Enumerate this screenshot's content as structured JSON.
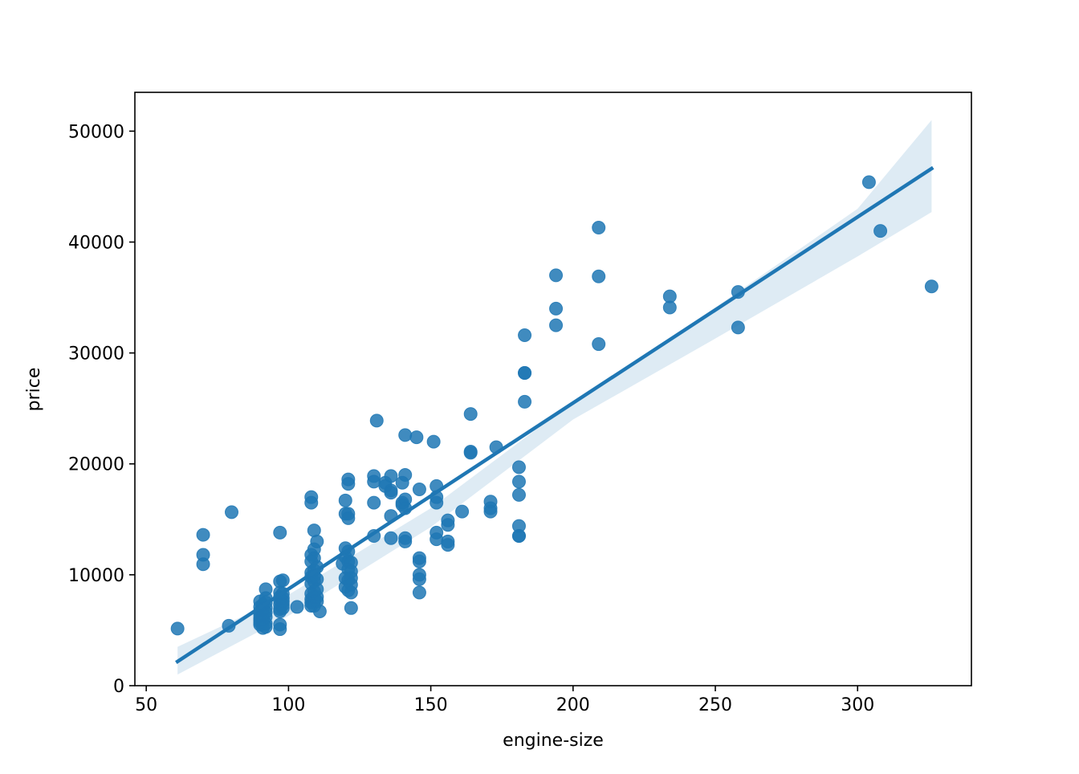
{
  "chart_data": {
    "type": "scatter",
    "title": "",
    "xlabel": "engine-size",
    "ylabel": "price",
    "xlim": [
      46,
      340
    ],
    "ylim": [
      0,
      53500
    ],
    "xticks": [
      50,
      100,
      150,
      200,
      250,
      300
    ],
    "yticks": [
      0,
      10000,
      20000,
      30000,
      40000,
      50000
    ],
    "grid": false,
    "legend": "none",
    "colors": {
      "points": "#1f77b4",
      "line": "#1f77b4",
      "band": "#1f77b4"
    },
    "regression": {
      "x_range": [
        61,
        326
      ],
      "slope": 167.7,
      "intercept": -8048,
      "ci_upper": [
        [
          61,
          3500
        ],
        [
          100,
          8200
        ],
        [
          150,
          16000
        ],
        [
          200,
          25600
        ],
        [
          250,
          34100
        ],
        [
          300,
          43000
        ],
        [
          326,
          51000
        ]
      ],
      "ci_lower": [
        [
          61,
          1000
        ],
        [
          100,
          6300
        ],
        [
          150,
          14300
        ],
        [
          200,
          24000
        ],
        [
          250,
          31300
        ],
        [
          300,
          38700
        ],
        [
          326,
          42700
        ]
      ]
    },
    "points": [
      [
        61,
        5150
      ],
      [
        70,
        13600
      ],
      [
        70,
        11800
      ],
      [
        70,
        10950
      ],
      [
        79,
        5400
      ],
      [
        80,
        15650
      ],
      [
        90,
        7600
      ],
      [
        90,
        7100
      ],
      [
        90,
        6700
      ],
      [
        90,
        6400
      ],
      [
        90,
        6100
      ],
      [
        90,
        5900
      ],
      [
        90,
        5700
      ],
      [
        90,
        5500
      ],
      [
        91,
        7300
      ],
      [
        91,
        6900
      ],
      [
        91,
        6500
      ],
      [
        91,
        6300
      ],
      [
        91,
        6000
      ],
      [
        91,
        5800
      ],
      [
        91,
        5200
      ],
      [
        92,
        8700
      ],
      [
        92,
        7900
      ],
      [
        92,
        7500
      ],
      [
        92,
        7000
      ],
      [
        92,
        6600
      ],
      [
        92,
        6200
      ],
      [
        92,
        5600
      ],
      [
        92,
        5300
      ],
      [
        97,
        13800
      ],
      [
        97,
        9400
      ],
      [
        97,
        8400
      ],
      [
        97,
        8000
      ],
      [
        97,
        7700
      ],
      [
        97,
        7300
      ],
      [
        97,
        6900
      ],
      [
        97,
        6700
      ],
      [
        97,
        5500
      ],
      [
        97,
        5100
      ],
      [
        98,
        9500
      ],
      [
        98,
        8300
      ],
      [
        98,
        7900
      ],
      [
        98,
        7600
      ],
      [
        98,
        7300
      ],
      [
        98,
        7000
      ],
      [
        103,
        7100
      ],
      [
        108,
        17000
      ],
      [
        108,
        16500
      ],
      [
        108,
        11800
      ],
      [
        108,
        11200
      ],
      [
        108,
        10200
      ],
      [
        108,
        9800
      ],
      [
        108,
        9200
      ],
      [
        108,
        8300
      ],
      [
        108,
        7800
      ],
      [
        108,
        7500
      ],
      [
        108,
        7200
      ],
      [
        109,
        14000
      ],
      [
        109,
        12300
      ],
      [
        109,
        11500
      ],
      [
        109,
        10400
      ],
      [
        109,
        9900
      ],
      [
        109,
        9400
      ],
      [
        109,
        8500
      ],
      [
        109,
        8000
      ],
      [
        109,
        7600
      ],
      [
        109,
        7200
      ],
      [
        110,
        13000
      ],
      [
        110,
        10700
      ],
      [
        110,
        9600
      ],
      [
        110,
        8700
      ],
      [
        110,
        8000
      ],
      [
        110,
        7600
      ],
      [
        111,
        6700
      ],
      [
        119,
        11000
      ],
      [
        120,
        16700
      ],
      [
        120,
        15500
      ],
      [
        120,
        12400
      ],
      [
        120,
        11600
      ],
      [
        120,
        9700
      ],
      [
        120,
        8900
      ],
      [
        121,
        18600
      ],
      [
        121,
        18200
      ],
      [
        121,
        15500
      ],
      [
        121,
        15100
      ],
      [
        121,
        12100
      ],
      [
        121,
        11200
      ],
      [
        121,
        10500
      ],
      [
        121,
        9500
      ],
      [
        121,
        8600
      ],
      [
        122,
        11100
      ],
      [
        122,
        10300
      ],
      [
        122,
        9700
      ],
      [
        122,
        9100
      ],
      [
        122,
        8400
      ],
      [
        122,
        7000
      ],
      [
        130,
        18900
      ],
      [
        130,
        18400
      ],
      [
        130,
        16500
      ],
      [
        130,
        13500
      ],
      [
        131,
        23900
      ],
      [
        134,
        18300
      ],
      [
        134,
        18000
      ],
      [
        136,
        18900
      ],
      [
        136,
        17600
      ],
      [
        136,
        17400
      ],
      [
        136,
        15300
      ],
      [
        136,
        13300
      ],
      [
        140,
        18300
      ],
      [
        140,
        16500
      ],
      [
        140,
        16300
      ],
      [
        141,
        22600
      ],
      [
        141,
        19000
      ],
      [
        141,
        16800
      ],
      [
        141,
        16000
      ],
      [
        141,
        13300
      ],
      [
        141,
        13000
      ],
      [
        145,
        22400
      ],
      [
        146,
        17700
      ],
      [
        146,
        11500
      ],
      [
        146,
        11200
      ],
      [
        146,
        10000
      ],
      [
        146,
        9600
      ],
      [
        146,
        8400
      ],
      [
        151,
        22000
      ],
      [
        152,
        18000
      ],
      [
        152,
        17000
      ],
      [
        152,
        16500
      ],
      [
        152,
        13800
      ],
      [
        152,
        13200
      ],
      [
        156,
        14900
      ],
      [
        156,
        14500
      ],
      [
        156,
        13000
      ],
      [
        156,
        12700
      ],
      [
        161,
        15700
      ],
      [
        164,
        24500
      ],
      [
        164,
        21100
      ],
      [
        164,
        21000
      ],
      [
        171,
        16600
      ],
      [
        171,
        16000
      ],
      [
        171,
        15700
      ],
      [
        173,
        21500
      ],
      [
        181,
        19700
      ],
      [
        181,
        18400
      ],
      [
        181,
        17200
      ],
      [
        181,
        14400
      ],
      [
        181,
        13500
      ],
      [
        181,
        13500
      ],
      [
        183,
        31600
      ],
      [
        183,
        28200
      ],
      [
        183,
        28200
      ],
      [
        183,
        25600
      ],
      [
        194,
        37000
      ],
      [
        194,
        34000
      ],
      [
        194,
        32500
      ],
      [
        209,
        41300
      ],
      [
        209,
        36900
      ],
      [
        209,
        30800
      ],
      [
        234,
        35100
      ],
      [
        234,
        34100
      ],
      [
        258,
        35500
      ],
      [
        258,
        32300
      ],
      [
        304,
        45400
      ],
      [
        308,
        41000
      ],
      [
        326,
        36000
      ]
    ]
  }
}
